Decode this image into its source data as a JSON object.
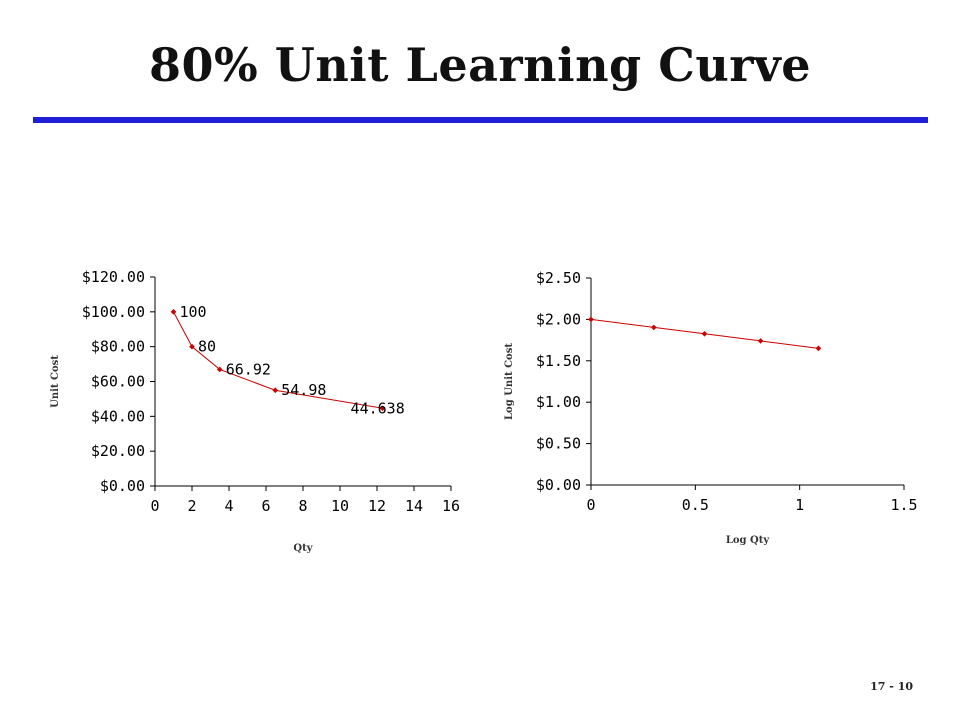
{
  "slide": {
    "title": "80% Unit Learning Curve",
    "page_number": "17 - 10",
    "rule_color": "#1f1fd6"
  },
  "chart_data": [
    {
      "type": "line",
      "xlabel": "Qty",
      "ylabel": "Unit Cost",
      "xlim": [
        0,
        16
      ],
      "ylim": [
        0,
        120
      ],
      "xticks": [
        0,
        2,
        4,
        6,
        8,
        10,
        12,
        14,
        16
      ],
      "xtick_labels": [
        "0",
        "2",
        "4",
        "6",
        "8",
        "10",
        "12",
        "14",
        "16"
      ],
      "yticks": [
        0,
        20,
        40,
        60,
        80,
        100,
        120
      ],
      "ytick_labels": [
        "$0.00",
        "$20.00",
        "$40.00",
        "$60.00",
        "$80.00",
        "$100.00",
        "$120.00"
      ],
      "series": [
        {
          "color": "#cc0000",
          "x": [
            1,
            2,
            3.5,
            6.5,
            12.3
          ],
          "y": [
            100,
            80,
            66.92,
            54.98,
            44.638
          ],
          "labels": [
            "100",
            "80",
            "66.92",
            "54.98",
            "44.638"
          ]
        }
      ],
      "grid": false
    },
    {
      "type": "line",
      "xlabel": "Log Qty",
      "ylabel": "Log Unit Cost",
      "xlim": [
        0,
        1.5
      ],
      "ylim": [
        0,
        2.5
      ],
      "xticks": [
        0,
        0.5,
        1,
        1.5
      ],
      "xtick_labels": [
        "0",
        "0.5",
        "1",
        "1.5"
      ],
      "yticks": [
        0,
        0.5,
        1,
        1.5,
        2,
        2.5
      ],
      "ytick_labels": [
        "$0.00",
        "$0.50",
        "$1.00",
        "$1.50",
        "$2.00",
        "$2.50"
      ],
      "series": [
        {
          "color": "#cc0000",
          "x": [
            0,
            0.301,
            0.544,
            0.813,
            1.09
          ],
          "y": [
            2.0,
            1.903,
            1.826,
            1.74,
            1.65
          ]
        }
      ],
      "grid": false
    }
  ]
}
